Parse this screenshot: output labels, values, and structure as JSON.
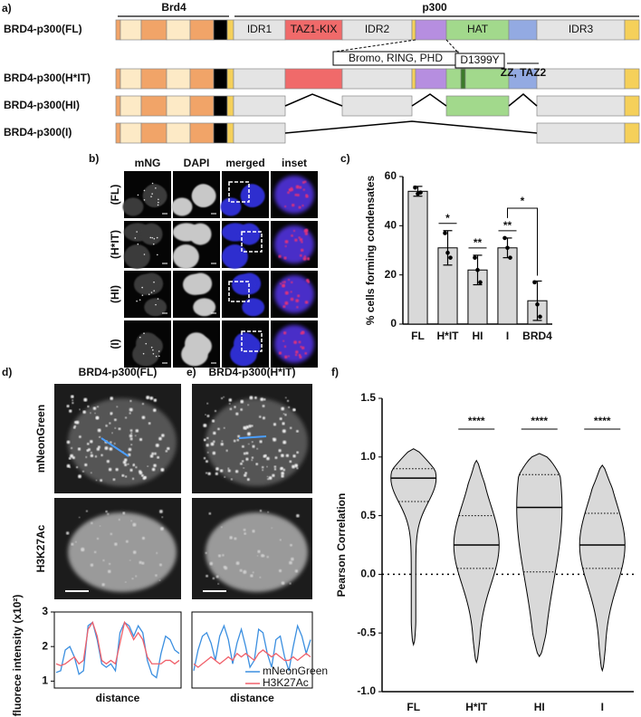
{
  "panel_labels": [
    "a)",
    "b)",
    "c)",
    "d)",
    "e)",
    "f)"
  ],
  "construct_diagram": {
    "group_labels": [
      "Brd4",
      "p300"
    ],
    "constructs": [
      "BRD4-p300(FL)",
      "BRD4-p300(H*IT)",
      "BRD4-p300(HI)",
      "BRD4-p300(I)"
    ],
    "domains": [
      "IDR1",
      "TAZ1-KIX",
      "IDR2",
      "HAT",
      "IDR3"
    ],
    "callouts": [
      "Bromo, RING, PHD",
      "D1399Y",
      "ZZ, TAZ2"
    ]
  },
  "imaging": {
    "channels": [
      "mNG",
      "DAPI",
      "merged",
      "inset"
    ],
    "rows": [
      "(FL)",
      "(H*IT)",
      "(HI)",
      "(I)"
    ]
  },
  "line_imaging": {
    "titles": [
      "BRD4-p300(FL)",
      "BRD4-p300(H*IT)"
    ],
    "channels": [
      "mNeonGreen",
      "H3K27Ac"
    ]
  },
  "chart_data": [
    {
      "type": "bar",
      "categories": [
        "FL",
        "H*IT",
        "HI",
        "I",
        "BRD4"
      ],
      "values": [
        54,
        31,
        22,
        31,
        9.5
      ],
      "errors": [
        2,
        7,
        6,
        4,
        8
      ],
      "points": [
        [
          55.5,
          53,
          53.5
        ],
        [
          37,
          29,
          27
        ],
        [
          27,
          22,
          17
        ],
        [
          35,
          31,
          27
        ],
        [
          17,
          8,
          3
        ]
      ],
      "ylabel": "% cells forming condensates",
      "ylim": [
        0,
        60
      ],
      "yticks": [
        0,
        20,
        40,
        60
      ],
      "color": "#d9d9d9",
      "annotations": [
        "*",
        "**",
        "**",
        "*"
      ]
    },
    {
      "type": "line",
      "ylabel": "fluorece intensity (x10²)",
      "xlabel": "distance",
      "ylim": [
        0.8,
        3
      ],
      "yticks": [
        1,
        2,
        3
      ],
      "series": [
        {
          "name": "mNeonGreen",
          "color": "#3b8fe0",
          "values": [
            1.25,
            1.3,
            1.9,
            2.0,
            1.7,
            1.2,
            1.3,
            2.6,
            2.7,
            2.2,
            1.5,
            1.4,
            1.5,
            1.3,
            2.4,
            2.7,
            2.6,
            2.3,
            2.6,
            2.4,
            1.6,
            1.2,
            1.1,
            1.8,
            2.3,
            2.2,
            1.9,
            1.8
          ]
        },
        {
          "name": "H3K27Ac",
          "color": "#f0606a",
          "values": [
            1.5,
            1.45,
            1.5,
            1.6,
            1.7,
            1.5,
            1.6,
            2.5,
            2.7,
            2.3,
            1.6,
            1.5,
            1.6,
            1.5,
            2.1,
            2.7,
            2.5,
            2.2,
            2.4,
            2.2,
            1.7,
            1.5,
            1.5,
            1.5,
            1.6,
            1.6,
            1.5,
            1.6
          ]
        }
      ]
    },
    {
      "type": "line",
      "xlabel": "distance",
      "ylim": [
        0.8,
        3
      ],
      "legend": "lower right",
      "series": [
        {
          "name": "mNeonGreen",
          "color": "#3b8fe0",
          "values": [
            1.3,
            1.9,
            2.3,
            2.4,
            2.1,
            1.6,
            2.3,
            2.6,
            2.2,
            1.5,
            2.1,
            2.5,
            2.0,
            1.4,
            1.6,
            2.5,
            2.4,
            1.8,
            1.4,
            2.2,
            2.3,
            1.7,
            1.3,
            2.0,
            2.6,
            2.3,
            1.8,
            2.2
          ]
        },
        {
          "name": "H3K27Ac",
          "color": "#f0606a",
          "values": [
            1.5,
            1.4,
            1.5,
            1.6,
            1.7,
            1.6,
            1.5,
            1.6,
            1.7,
            1.6,
            1.8,
            1.7,
            1.8,
            1.7,
            1.6,
            1.8,
            1.9,
            1.8,
            1.7,
            1.8,
            1.7,
            1.6,
            1.6,
            1.7,
            1.6,
            1.7,
            1.8,
            1.7
          ]
        }
      ]
    },
    {
      "type": "violin",
      "categories": [
        "FL",
        "H*IT",
        "HI",
        "I"
      ],
      "min": [
        -0.6,
        -0.75,
        -0.7,
        -0.82
      ],
      "q1": [
        0.62,
        0.05,
        0.02,
        0.05
      ],
      "median": [
        0.82,
        0.25,
        0.57,
        0.25
      ],
      "q3": [
        0.9,
        0.5,
        0.85,
        0.52
      ],
      "max": [
        1.07,
        0.97,
        1.03,
        0.93
      ],
      "ylabel": "Pearson Correlation",
      "ylim": [
        -1,
        1.5
      ],
      "yticks": [
        {
          "value": -1,
          "label": "-1.0"
        },
        -0.5,
        {
          "value": 0,
          "label": "0.0"
        },
        0.5,
        {
          "value": 1,
          "label": "1.0"
        },
        1.5
      ],
      "hline": 0,
      "annotations": [
        "****",
        "****",
        "****"
      ],
      "color": "#d9d9d9"
    }
  ]
}
